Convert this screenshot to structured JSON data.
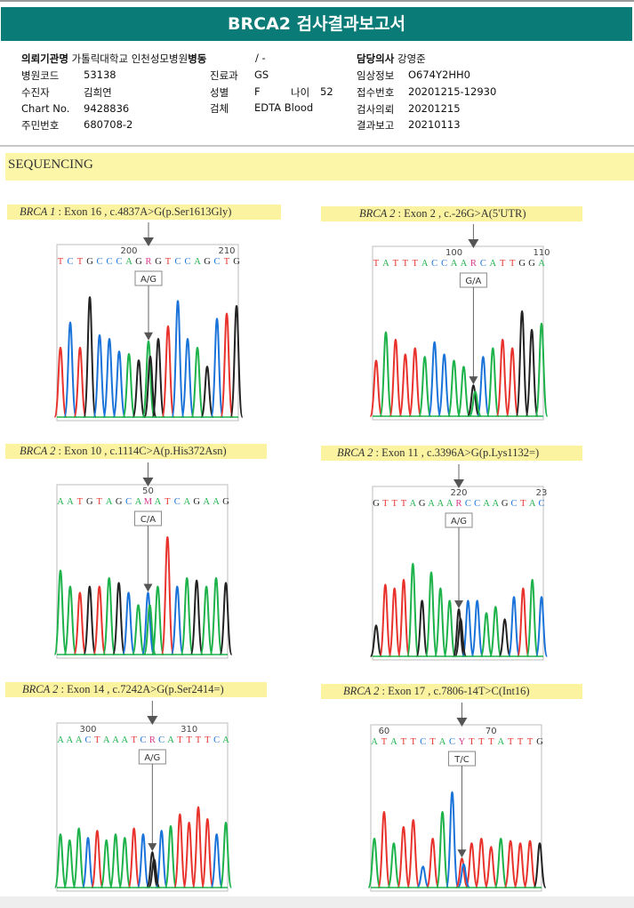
{
  "header": {
    "title": "BRCA2 검사결과보고서"
  },
  "info": {
    "institution_label": "의뢰기관명",
    "institution": "가톨릭대학교 인천성모병원",
    "ward_label": "병동",
    "ward": "/ -",
    "doctor_label": "담당의사",
    "doctor": "강영준",
    "hospital_code_label": "병원코드",
    "hospital_code": "53138",
    "department_label": "진료과",
    "department": "GS",
    "clinical_info_label": "임상정보",
    "clinical_info": "O674Y2HH0",
    "patient_label": "수진자",
    "patient": "김희연",
    "sex_label": "성별",
    "sex": "F",
    "age_label": "나이",
    "age": "52",
    "receipt_label": "접수번호",
    "receipt": "20201215-12930",
    "chart_label": "Chart No.",
    "chart": "9428836",
    "specimen_label": "검체",
    "specimen": "EDTA Blood",
    "request_label": "검사의뢰",
    "request": "20201215",
    "id_label": "주민번호",
    "id": "680708-2",
    "report_label": "결과보고",
    "report": "20210113"
  },
  "section": {
    "title": "SEQUENCING"
  },
  "colors": {
    "A": "#1db24a",
    "C": "#1a73d9",
    "G": "#222222",
    "T": "#e8332d",
    "R": "#d63a8a",
    "Y": "#d63a8a",
    "M": "#d63a8a",
    "header": "#0b7b77",
    "highlight": "#fbf3a0"
  },
  "chart_data": [
    {
      "type": "chromatogram",
      "gene": "BRCA 1",
      "detail": "Exon 16 , c.4837A>G(p.Ser1613Gly)",
      "sequence": "TCTGCCCAGRGTCCAGCTG",
      "tick_labels": [
        "200",
        "210"
      ],
      "tick_index": [
        7,
        17
      ],
      "variant_index": 9,
      "call": "A/G",
      "peaks": [
        [
          "T",
          0.55
        ],
        [
          "C",
          0.75
        ],
        [
          "T",
          0.55
        ],
        [
          "G",
          0.95
        ],
        [
          "C",
          0.65
        ],
        [
          "C",
          0.62
        ],
        [
          "C",
          0.52
        ],
        [
          "A",
          0.5
        ],
        [
          "G",
          0.45
        ],
        [
          "A",
          0.6
        ],
        [
          "G",
          0.62
        ],
        [
          "T",
          0.72
        ],
        [
          "C",
          0.92
        ],
        [
          "C",
          0.62
        ],
        [
          "A",
          0.55
        ],
        [
          "G",
          0.4
        ],
        [
          "C",
          0.78
        ],
        [
          "T",
          0.82
        ],
        [
          "G",
          0.88
        ]
      ]
    },
    {
      "type": "chromatogram",
      "gene": "BRCA 2",
      "detail": "Exon 2 , c.-26G>A(5'UTR)",
      "sequence": "TATTTACCAARCATTGGA",
      "tick_labels": [
        "100",
        "110"
      ],
      "tick_index": [
        8,
        17
      ],
      "variant_index": 10,
      "call": "G/A",
      "peaks": [
        [
          "T",
          0.45
        ],
        [
          "A",
          0.68
        ],
        [
          "T",
          0.62
        ],
        [
          "T",
          0.5
        ],
        [
          "T",
          0.55
        ],
        [
          "A",
          0.48
        ],
        [
          "C",
          0.6
        ],
        [
          "C",
          0.5
        ],
        [
          "A",
          0.45
        ],
        [
          "A",
          0.4
        ],
        [
          "G",
          0.25
        ],
        [
          "C",
          0.48
        ],
        [
          "A",
          0.55
        ],
        [
          "T",
          0.62
        ],
        [
          "T",
          0.55
        ],
        [
          "G",
          0.85
        ],
        [
          "G",
          0.7
        ],
        [
          "A",
          0.75
        ]
      ]
    },
    {
      "type": "chromatogram",
      "gene": "BRCA 2",
      "detail": "Exon 10 , c.1114C>A(p.His372Asn)",
      "sequence": "AATGTAGCAMATCAGAAG",
      "tick_labels": [
        "50"
      ],
      "tick_index": [
        9
      ],
      "variant_index": 9,
      "call": "C/A",
      "peaks": [
        [
          "A",
          0.68
        ],
        [
          "A",
          0.55
        ],
        [
          "T",
          0.5
        ],
        [
          "G",
          0.55
        ],
        [
          "T",
          0.55
        ],
        [
          "A",
          0.62
        ],
        [
          "G",
          0.58
        ],
        [
          "C",
          0.5
        ],
        [
          "A",
          0.4
        ],
        [
          "C",
          0.5
        ],
        [
          "A",
          0.55
        ],
        [
          "T",
          0.95
        ],
        [
          "C",
          0.55
        ],
        [
          "A",
          0.62
        ],
        [
          "G",
          0.6
        ],
        [
          "A",
          0.55
        ],
        [
          "A",
          0.62
        ],
        [
          "G",
          0.58
        ]
      ]
    },
    {
      "type": "chromatogram",
      "gene": "BRCA 2",
      "detail": "Exon 11 , c.3396A>G(p.Lys1132=)",
      "sequence": "GTTTAGAAARCCAAGCTAC",
      "tick_labels": [
        "220",
        "23"
      ],
      "tick_index": [
        9,
        18
      ],
      "variant_index": 9,
      "call": "A/G",
      "peaks": [
        [
          "G",
          0.25
        ],
        [
          "T",
          0.58
        ],
        [
          "T",
          0.55
        ],
        [
          "T",
          0.62
        ],
        [
          "A",
          0.75
        ],
        [
          "G",
          0.45
        ],
        [
          "A",
          0.68
        ],
        [
          "A",
          0.55
        ],
        [
          "A",
          0.45
        ],
        [
          "G",
          0.38
        ],
        [
          "C",
          0.45
        ],
        [
          "C",
          0.45
        ],
        [
          "A",
          0.35
        ],
        [
          "A",
          0.4
        ],
        [
          "G",
          0.3
        ],
        [
          "C",
          0.48
        ],
        [
          "T",
          0.55
        ],
        [
          "A",
          0.62
        ],
        [
          "C",
          0.48
        ]
      ]
    },
    {
      "type": "chromatogram",
      "gene": "BRCA 2",
      "detail": "Exon 14 , c.7242A>G(p.Ser2414=)",
      "sequence": "AAACTAAATCRCATTTTCA",
      "tick_labels": [
        "300",
        "310"
      ],
      "tick_index": [
        3,
        14
      ],
      "variant_index": 10,
      "call": "A/G",
      "peaks": [
        [
          "A",
          0.45
        ],
        [
          "A",
          0.4
        ],
        [
          "A",
          0.5
        ],
        [
          "C",
          0.42
        ],
        [
          "T",
          0.48
        ],
        [
          "A",
          0.4
        ],
        [
          "A",
          0.45
        ],
        [
          "A",
          0.42
        ],
        [
          "T",
          0.5
        ],
        [
          "C",
          0.45
        ],
        [
          "G",
          0.3
        ],
        [
          "C",
          0.48
        ],
        [
          "A",
          0.52
        ],
        [
          "T",
          0.62
        ],
        [
          "T",
          0.55
        ],
        [
          "T",
          0.68
        ],
        [
          "T",
          0.58
        ],
        [
          "C",
          0.45
        ],
        [
          "A",
          0.55
        ]
      ]
    },
    {
      "type": "chromatogram",
      "gene": "BRCA 2",
      "detail": "Exon 17 , c.7806-14T>C(Int16)",
      "sequence": "ATATTCTACYTTTATTTG",
      "tick_labels": [
        "60",
        "70"
      ],
      "tick_index": [
        1,
        12
      ],
      "variant_index": 9,
      "call": "T/C",
      "peaks": [
        [
          "A",
          0.42
        ],
        [
          "T",
          0.65
        ],
        [
          "A",
          0.38
        ],
        [
          "T",
          0.52
        ],
        [
          "T",
          0.58
        ],
        [
          "C",
          0.18
        ],
        [
          "T",
          0.42
        ],
        [
          "A",
          0.65
        ],
        [
          "C",
          0.82
        ],
        [
          "T",
          0.25
        ],
        [
          "T",
          0.38
        ],
        [
          "T",
          0.42
        ],
        [
          "T",
          0.35
        ],
        [
          "A",
          0.42
        ],
        [
          "T",
          0.4
        ],
        [
          "T",
          0.38
        ],
        [
          "T",
          0.4
        ],
        [
          "G",
          0.38
        ]
      ]
    }
  ]
}
